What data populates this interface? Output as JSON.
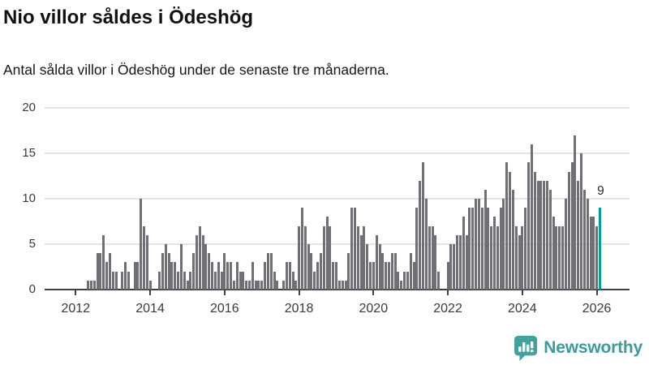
{
  "header": {
    "title": "Nio villor såldes i Ödeshög",
    "subtitle": "Antal sålda villor i Ödeshög under de senaste tre månaderna."
  },
  "chart_data": {
    "type": "bar",
    "title": "Nio villor såldes i Ödeshög",
    "subtitle": "Antal sålda villor i Ödeshög under de senaste tre månaderna.",
    "unit": "sålda villor (rullande tre månader)",
    "freq": "monthly",
    "x_start": "2012-01",
    "x_end": "2026-02",
    "values": [
      0,
      0,
      0,
      0,
      1,
      1,
      1,
      4,
      4,
      6,
      3,
      4,
      2,
      2,
      0,
      2,
      3,
      2,
      0,
      3,
      3,
      10,
      7,
      6,
      1,
      0,
      0,
      2,
      4,
      5,
      4,
      3,
      3,
      2,
      5,
      2,
      1,
      2,
      4,
      6,
      7,
      6,
      5,
      4,
      3,
      2,
      3,
      2,
      4,
      3,
      3,
      1,
      3,
      2,
      2,
      1,
      1,
      3,
      1,
      1,
      1,
      3,
      4,
      4,
      2,
      1,
      0,
      1,
      3,
      3,
      2,
      1,
      7,
      9,
      7,
      5,
      4,
      2,
      3,
      4,
      7,
      8,
      7,
      3,
      3,
      1,
      1,
      1,
      4,
      9,
      9,
      7,
      6,
      7,
      5,
      3,
      3,
      6,
      5,
      4,
      3,
      3,
      4,
      4,
      2,
      1,
      2,
      2,
      4,
      3,
      9,
      12,
      14,
      10,
      7,
      7,
      6,
      2,
      0,
      0,
      3,
      5,
      5,
      6,
      6,
      8,
      6,
      9,
      9,
      10,
      10,
      9,
      11,
      9,
      7,
      8,
      7,
      9,
      10,
      14,
      13,
      11,
      7,
      6,
      7,
      9,
      14,
      16,
      13,
      12,
      12,
      12,
      12,
      11,
      8,
      7,
      7,
      7,
      10,
      13,
      14,
      17,
      12,
      15,
      11,
      10,
      8,
      8,
      7,
      9
    ],
    "highlight_last": {
      "value": 9,
      "label": "9",
      "color": "#009C9C"
    },
    "bar_color": "#6F6F76",
    "ylim": [
      0,
      20
    ],
    "yticks": [
      "0",
      "5",
      "10",
      "15",
      "20"
    ],
    "xticks": [
      "2012",
      "2014",
      "2016",
      "2018",
      "2020",
      "2022",
      "2024",
      "2026"
    ],
    "grid": "horizontal-only",
    "legend": "none"
  },
  "annotation": {
    "last_value_label": "9"
  },
  "footer": {
    "brand": "Newsworthy",
    "brand_color": "#3B9C9C",
    "icon_color": "#3FA29C"
  }
}
